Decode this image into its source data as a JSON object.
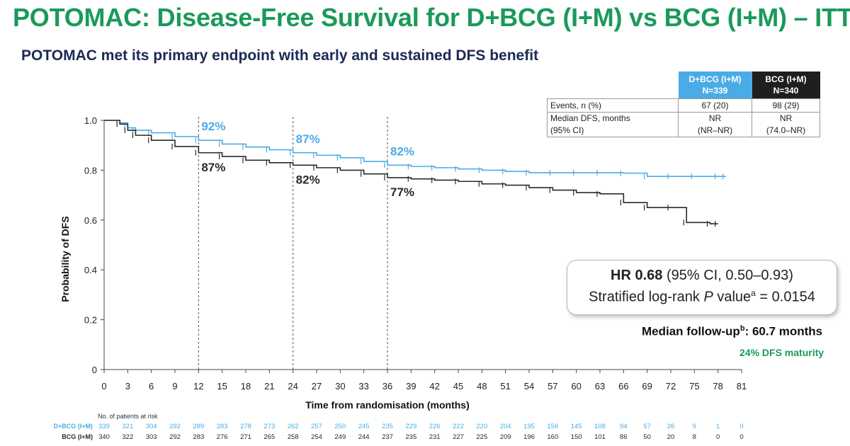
{
  "slide": {
    "title": "POTOMAC: Disease-Free Survival for D+BCG (I+M) vs BCG (I+M) – ITT",
    "subtitle": "POTOMAC met its primary endpoint with early and sustained DFS benefit"
  },
  "summary_table": {
    "col1_header_line1": "D+BCG (I+M)",
    "col1_header_line2": "N=339",
    "col2_header_line1": "BCG (I+M)",
    "col2_header_line2": "N=340",
    "row1_label": "Events, n (%)",
    "row1_col1": "67 (20)",
    "row1_col2": "98 (29)",
    "row2_label_line1": "Median DFS, months",
    "row2_label_line2": "(95% CI)",
    "row2_col1_line1": "NR",
    "row2_col1_line2": "(NR–NR)",
    "row2_col2_line1": "NR",
    "row2_col2_line2": "(74.0–NR)"
  },
  "hr_box": {
    "hr_label": "HR 0.68",
    "hr_ci": "(95% CI, 0.50–0.93)",
    "logrank_prefix": "Stratified log-rank ",
    "logrank_p": "P",
    "logrank_value_word": " value",
    "logrank_sup": "a",
    "logrank_result": " = 0.0154"
  },
  "followup": {
    "prefix": "Median follow-up",
    "sup": "b",
    "suffix": ": 60.7 months"
  },
  "maturity": "24% DFS maturity",
  "colors": {
    "title_green": "#1a9a5a",
    "subtitle_navy": "#1b2a55",
    "dbcg_blue": "#4aace6",
    "bcg_black": "#2a2a2a"
  },
  "chart_data": {
    "type": "line",
    "xlabel": "Time from randomisation (months)",
    "ylabel": "Probability of DFS",
    "xlim": [
      0,
      81
    ],
    "ylim": [
      0,
      1.0
    ],
    "xticks": [
      0,
      3,
      6,
      9,
      12,
      15,
      18,
      21,
      24,
      27,
      30,
      33,
      36,
      39,
      42,
      45,
      48,
      51,
      54,
      57,
      60,
      63,
      66,
      69,
      72,
      75,
      78,
      81
    ],
    "yticks": [
      0,
      0.2,
      0.4,
      0.6,
      0.8,
      1.0
    ],
    "ytick_labels": [
      "0",
      "0.2",
      "0.4",
      "0.6",
      "0.8",
      "1.0"
    ],
    "reference_lines_x": [
      12,
      24,
      36
    ],
    "annotations": [
      {
        "x": 12,
        "series": "D+BCG (I+M)",
        "text": "92%"
      },
      {
        "x": 24,
        "series": "D+BCG (I+M)",
        "text": "87%"
      },
      {
        "x": 36,
        "series": "D+BCG (I+M)",
        "text": "82%"
      },
      {
        "x": 12,
        "series": "BCG (I+M)",
        "text": "87%"
      },
      {
        "x": 24,
        "series": "BCG (I+M)",
        "text": "82%"
      },
      {
        "x": 36,
        "series": "BCG (I+M)",
        "text": "77%"
      }
    ],
    "series": [
      {
        "name": "D+BCG (I+M)",
        "color": "#4aace6",
        "x": [
          0,
          2,
          3,
          4,
          6,
          9,
          12,
          15,
          18,
          21,
          24,
          27,
          30,
          33,
          36,
          39,
          42,
          45,
          48,
          51,
          54,
          57,
          60,
          63,
          66,
          69,
          72,
          75,
          78,
          79
        ],
        "y": [
          1.0,
          0.99,
          0.97,
          0.96,
          0.95,
          0.935,
          0.92,
          0.905,
          0.893,
          0.882,
          0.87,
          0.86,
          0.85,
          0.835,
          0.82,
          0.815,
          0.81,
          0.805,
          0.8,
          0.795,
          0.79,
          0.79,
          0.79,
          0.79,
          0.788,
          0.775,
          0.775,
          0.775,
          0.775,
          0.775
        ]
      },
      {
        "name": "BCG (I+M)",
        "color": "#2a2a2a",
        "x": [
          0,
          2,
          3,
          4,
          6,
          9,
          12,
          15,
          18,
          21,
          24,
          27,
          30,
          33,
          36,
          39,
          42,
          45,
          48,
          51,
          54,
          57,
          60,
          63,
          66,
          69,
          72,
          74,
          77,
          78
        ],
        "y": [
          1.0,
          0.985,
          0.96,
          0.94,
          0.92,
          0.895,
          0.87,
          0.855,
          0.84,
          0.83,
          0.82,
          0.81,
          0.8,
          0.785,
          0.77,
          0.765,
          0.76,
          0.755,
          0.745,
          0.74,
          0.73,
          0.72,
          0.71,
          0.705,
          0.67,
          0.65,
          0.65,
          0.59,
          0.585,
          0.585
        ]
      }
    ],
    "risk_table": {
      "title": "No. of patients at risk",
      "rows": [
        {
          "label": "D+BCG (I+M)",
          "color": "#4aace6",
          "values": [
            "339",
            "321",
            "304",
            "292",
            "289",
            "283",
            "278",
            "273",
            "262",
            "257",
            "250",
            "245",
            "235",
            "229",
            "226",
            "222",
            "220",
            "204",
            "195",
            "156",
            "145",
            "108",
            "94",
            "57",
            "26",
            "9",
            "1",
            "0"
          ]
        },
        {
          "label": "BCG (I+M)",
          "color": "#2a2a2a",
          "values": [
            "340",
            "322",
            "303",
            "292",
            "283",
            "276",
            "271",
            "265",
            "258",
            "254",
            "249",
            "244",
            "237",
            "235",
            "231",
            "227",
            "225",
            "209",
            "196",
            "160",
            "150",
            "101",
            "86",
            "50",
            "20",
            "8",
            "0",
            "0"
          ]
        }
      ]
    }
  }
}
